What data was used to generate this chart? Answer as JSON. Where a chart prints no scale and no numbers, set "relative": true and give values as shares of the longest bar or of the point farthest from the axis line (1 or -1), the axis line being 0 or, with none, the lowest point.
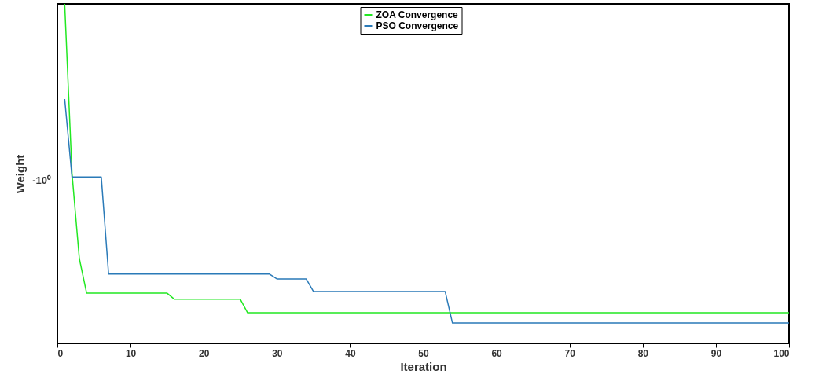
{
  "chart_data": {
    "type": "line",
    "xlabel": "Iteration",
    "ylabel": "Weight",
    "relative": true,
    "xlim": [
      0,
      100
    ],
    "xticks": [
      0,
      10,
      20,
      30,
      40,
      50,
      60,
      70,
      80,
      90,
      100
    ],
    "legend": "top",
    "grid": false,
    "annotations": [
      "-10⁰"
    ],
    "series": [
      {
        "name": "ZOA Convergence",
        "color": "#22e822",
        "x": [
          1,
          2,
          3,
          4,
          15,
          16,
          25,
          26,
          100
        ],
        "values": [
          1.0,
          0.5,
          0.25,
          0.148,
          0.148,
          0.13,
          0.13,
          0.09,
          0.09
        ]
      },
      {
        "name": "PSO Convergence",
        "color": "#2a7ab8",
        "x": [
          1,
          2,
          6,
          7,
          29,
          30,
          34,
          35,
          53,
          54,
          100
        ],
        "values": [
          0.72,
          0.49,
          0.49,
          0.204,
          0.204,
          0.19,
          0.19,
          0.153,
          0.153,
          0.06,
          0.06
        ]
      }
    ]
  }
}
